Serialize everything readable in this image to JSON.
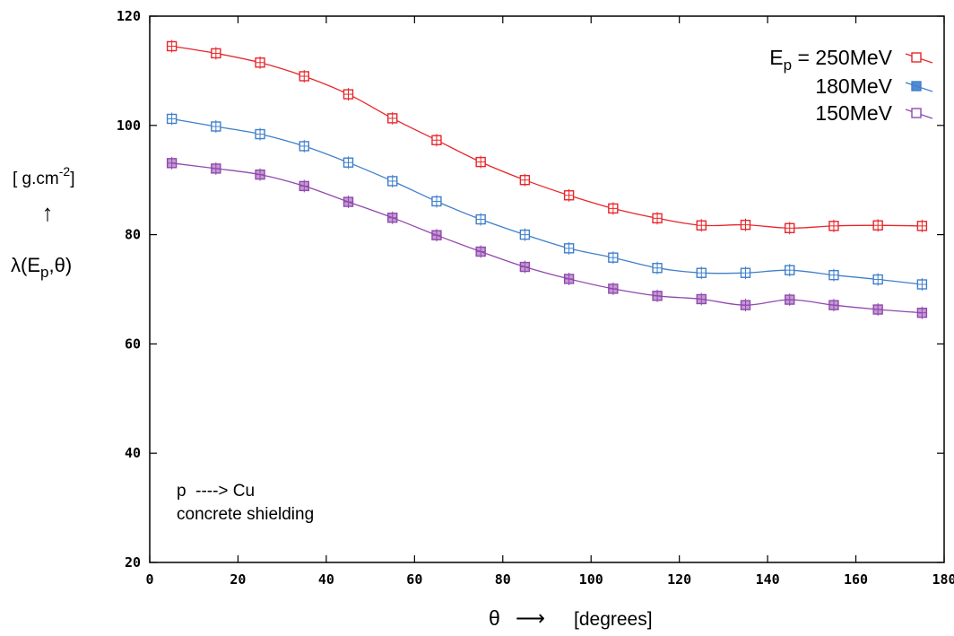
{
  "chart_data": {
    "type": "line",
    "title": "",
    "xlabel": {
      "symbol": "θ",
      "arrow": "⟶",
      "unit": "[degrees]"
    },
    "ylabel": {
      "unit_prefix": "[ g.cm",
      "unit_exp": "-2",
      "unit_suffix": "]",
      "arrow": "↑",
      "lambda": "λ(E",
      "sub": "p",
      "rest": ",θ)"
    },
    "xlim": [
      0,
      180
    ],
    "ylim": [
      20,
      120
    ],
    "xticks": [
      "0",
      "20",
      "40",
      "60",
      "80",
      "100",
      "120",
      "140",
      "160",
      "180"
    ],
    "yticks": [
      "20",
      "40",
      "60",
      "80",
      "100",
      "120"
    ],
    "x": [
      5,
      15,
      25,
      35,
      45,
      55,
      65,
      75,
      85,
      95,
      105,
      115,
      125,
      135,
      145,
      155,
      165,
      175
    ],
    "legend": {
      "position": "top-right",
      "prefix": "E",
      "prefix_sub": "p",
      "prefix_eq": " = "
    },
    "series": [
      {
        "name": "250MeV",
        "color": "#e8262a",
        "values": [
          114.5,
          113.2,
          111.5,
          109,
          105.7,
          101.3,
          97.3,
          93.3,
          90,
          87.2,
          84.8,
          83,
          81.7,
          81.8,
          81.2,
          81.6,
          81.7,
          81.6
        ]
      },
      {
        "name": "180MeV",
        "color": "#3f7fcb",
        "values": [
          101.2,
          99.8,
          98.4,
          96.2,
          93.2,
          89.8,
          86.1,
          82.8,
          80,
          77.5,
          75.8,
          73.9,
          73,
          73,
          73.5,
          72.6,
          71.8,
          70.9
        ]
      },
      {
        "name": "150MeV",
        "color": "#9148ae",
        "values": [
          93.1,
          92.1,
          91,
          88.9,
          86,
          83.1,
          79.9,
          76.9,
          74.1,
          71.9,
          70.1,
          68.8,
          68.2,
          67.1,
          68.1,
          67.1,
          66.3,
          65.7
        ]
      }
    ],
    "annotation": {
      "line1": "p  ----> Cu",
      "line2": "concrete shielding"
    },
    "grid": false
  }
}
